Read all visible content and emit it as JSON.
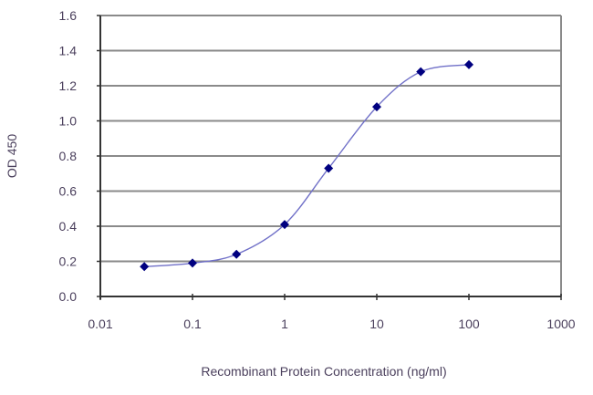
{
  "chart_data": {
    "type": "line",
    "title": "",
    "xlabel": "Recombinant Protein Concentration (ng/ml)",
    "ylabel": "OD 450",
    "xscale": "log",
    "xlim": [
      0.01,
      1000
    ],
    "ylim": [
      0.0,
      1.6
    ],
    "x_ticks": [
      "0.01",
      "0.1",
      "1",
      "10",
      "100",
      "1000"
    ],
    "y_ticks": [
      "0.0",
      "0.2",
      "0.4",
      "0.6",
      "0.8",
      "1.0",
      "1.2",
      "1.4",
      "1.6"
    ],
    "grid": "horizontal",
    "legend": null,
    "series": [
      {
        "name": "OD 450",
        "marker": "diamond",
        "x": [
          0.03,
          0.1,
          0.3,
          1,
          3,
          10,
          30,
          100
        ],
        "values": [
          0.17,
          0.19,
          0.24,
          0.41,
          0.73,
          1.08,
          1.28,
          1.32
        ]
      }
    ],
    "fit_curve": "sigmoidal (4-parameter logistic)"
  },
  "colors": {
    "marker": "#000080",
    "curve": "#7070c8",
    "grid": "#8a8a8a",
    "axis": "#333333",
    "text": "#4a3f5c"
  }
}
